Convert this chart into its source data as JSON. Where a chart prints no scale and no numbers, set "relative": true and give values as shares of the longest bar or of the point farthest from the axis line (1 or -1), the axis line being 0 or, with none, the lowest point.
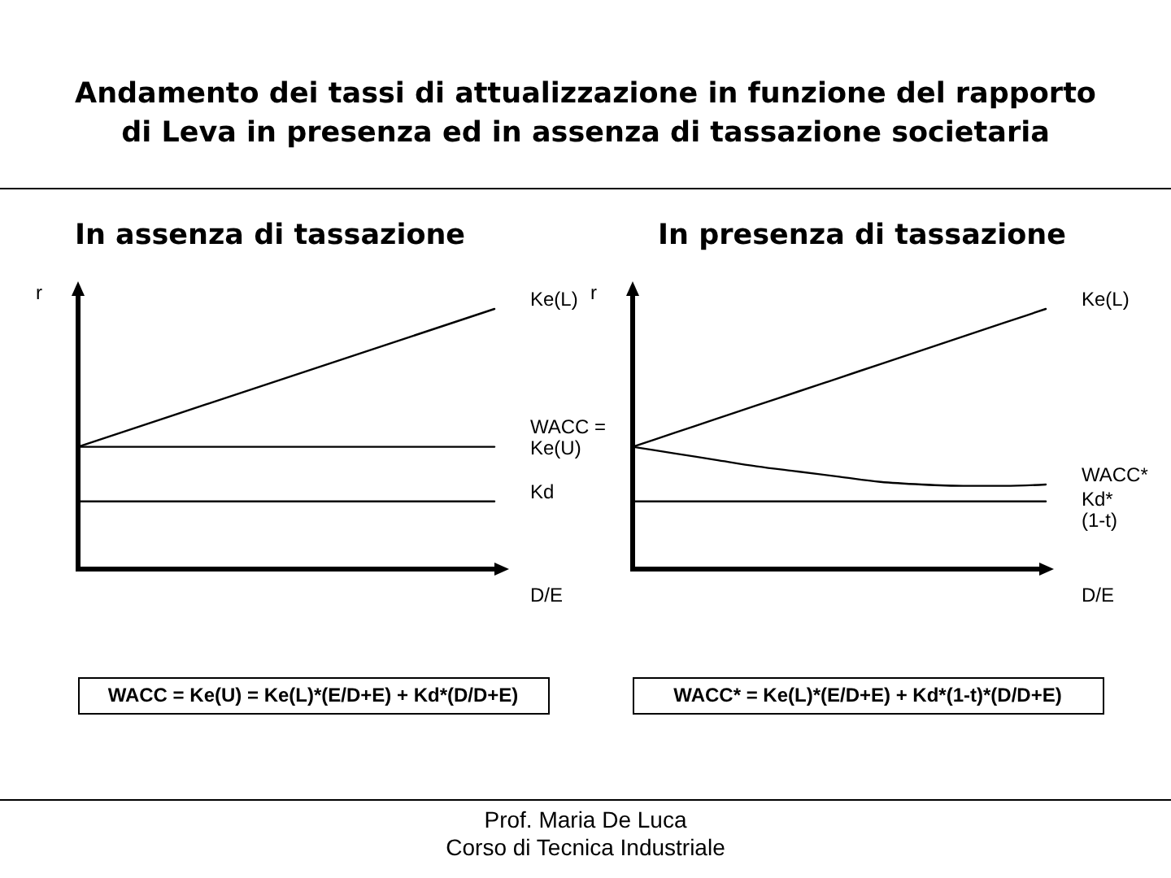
{
  "chart_data": [
    {
      "type": "other",
      "title": "Andamento dei tassi di attualizzazione in funzione del rapporto di Leva in presenza ed in assenza di tassazione societaria",
      "annotations": [
        "Prof. Maria De Luca",
        "Corso di Tecnica Industriale"
      ]
    },
    {
      "type": "line",
      "title": "In assenza di tassazione",
      "ylabel": "r",
      "xlabel": "D/E",
      "relative": true,
      "categories": [
        null,
        null
      ],
      "series": [
        {
          "name": "Ke(L)",
          "color": "#000000",
          "values": [
            0.47,
            1
          ]
        },
        {
          "name": "WACC = Ke(U)",
          "color": "#000000",
          "values": [
            0.47,
            0.47
          ]
        },
        {
          "name": "Kd",
          "color": "#000000",
          "values": [
            0.26,
            0.26
          ]
        }
      ],
      "annotations": [
        "WACC = Ke(U) = Ke(L)*(E/D+E) + Kd*(D/D+E)"
      ]
    },
    {
      "type": "line",
      "title": "In presenza di tassazione",
      "ylabel": "r",
      "xlabel": "D/E",
      "relative": true,
      "categories": [
        null,
        null,
        null,
        null,
        null,
        null,
        null,
        null,
        null,
        null,
        null
      ],
      "series": [
        {
          "name": "Ke(L)",
          "color": "#000000",
          "values": [
            0.47,
            0.523,
            0.576,
            0.629,
            0.682,
            0.735,
            0.788,
            0.841,
            0.894,
            0.947,
            1
          ]
        },
        {
          "name": "WACC*",
          "color": "#000000",
          "values": [
            0.47,
            0.445,
            0.42,
            0.395,
            0.375,
            0.355,
            0.335,
            0.325,
            0.32,
            0.32,
            0.325
          ]
        },
        {
          "name": "Kd* (1-t)",
          "color": "#000000",
          "values": [
            0.26,
            0.26,
            0.26,
            0.26,
            0.26,
            0.26,
            0.26,
            0.26,
            0.26,
            0.26,
            0.26
          ]
        }
      ],
      "annotations": [
        "WACC* = Ke(L)*(E/D+E) + Kd*(1-t)*(D/D+E)"
      ]
    }
  ]
}
